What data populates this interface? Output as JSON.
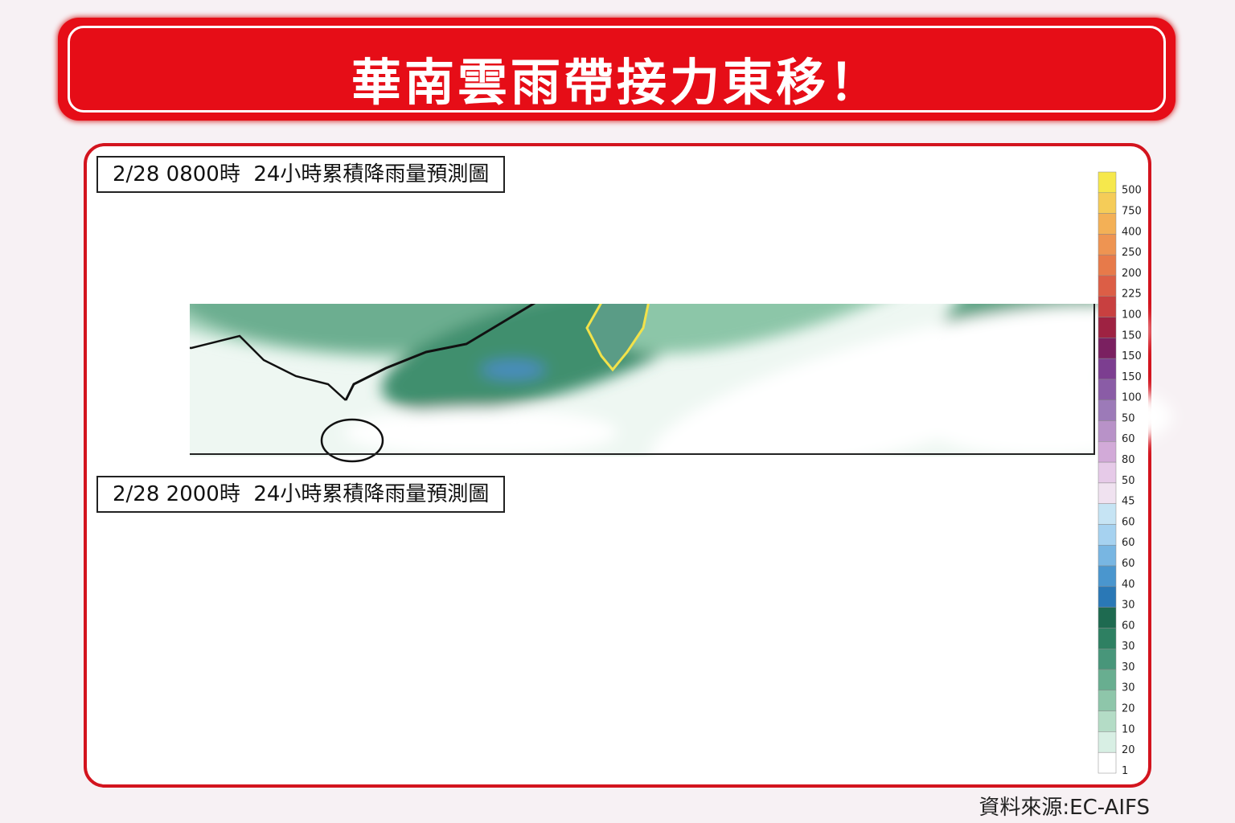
{
  "header": {
    "title": "華南雲雨帶接力東移！"
  },
  "panels": [
    {
      "label": "2/28 0800時  24小時累積降雨量預測圖"
    },
    {
      "label": "2/28 2000時  24小時累積降雨量預測圖"
    }
  ],
  "legend": {
    "items": [
      {
        "label": "500",
        "color": "#f6e84c"
      },
      {
        "label": "750",
        "color": "#f5cc58"
      },
      {
        "label": "400",
        "color": "#f3b056"
      },
      {
        "label": "250",
        "color": "#ee9452"
      },
      {
        "label": "200",
        "color": "#e77a4a"
      },
      {
        "label": "225",
        "color": "#dc5e46"
      },
      {
        "label": "100",
        "color": "#c84040"
      },
      {
        "label": "150",
        "color": "#9e2242"
      },
      {
        "label": "150",
        "color": "#7a2060"
      },
      {
        "label": "150",
        "color": "#7c3e90"
      },
      {
        "label": "100",
        "color": "#8a5ca6"
      },
      {
        "label": "50",
        "color": "#9c7ab8"
      },
      {
        "label": "60",
        "color": "#b892c8"
      },
      {
        "label": "80",
        "color": "#d2aad8"
      },
      {
        "label": "50",
        "color": "#e6cae8"
      },
      {
        "label": "45",
        "color": "#f0e2f0"
      },
      {
        "label": "60",
        "color": "#c6e4f4"
      },
      {
        "label": "60",
        "color": "#a6d2f0"
      },
      {
        "label": "60",
        "color": "#78b6e2"
      },
      {
        "label": "40",
        "color": "#4a96ce"
      },
      {
        "label": "30",
        "color": "#2a78b6"
      },
      {
        "label": "60",
        "color": "#1e6a50"
      },
      {
        "label": "30",
        "color": "#2e8062"
      },
      {
        "label": "30",
        "color": "#48967a"
      },
      {
        "label": "30",
        "color": "#68ae90"
      },
      {
        "label": "20",
        "color": "#8ec6aa"
      },
      {
        "label": "10",
        "color": "#b4dcc6"
      },
      {
        "label": "20",
        "color": "#d8efe4"
      },
      {
        "label": "1",
        "color": "#ffffff"
      }
    ]
  },
  "source": "資料來源:EC-AIFS"
}
